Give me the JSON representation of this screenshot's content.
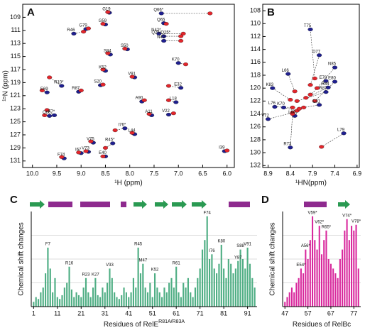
{
  "chart_data": [
    {
      "type": "scatter",
      "panel": "A",
      "xlabel": "¹H (ppm)",
      "ylabel": "¹⁵N (ppm)",
      "xlim": [
        10.2,
        5.85
      ],
      "ylim": [
        132,
        107
      ],
      "xticks": [
        {
          "value": 10.0,
          "label": "10.0"
        },
        9.5,
        {
          "value": 9.0,
          "label": "9.0"
        },
        8.5,
        {
          "value": 8.0,
          "label": "8.0"
        },
        7.5,
        {
          "value": 7.0,
          "label": "7.0"
        },
        6.5,
        {
          "value": 6.0,
          "label": "6.0"
        }
      ],
      "yticks": [
        109,
        111,
        113,
        115,
        117,
        119,
        121,
        123,
        125,
        127,
        129,
        131
      ],
      "labels": [
        "G19",
        "Q65",
        "G59",
        "R46",
        "G79",
        "S50",
        "S84",
        "K70",
        "K52",
        "V91",
        "R10*",
        "E32",
        "E69",
        "R87",
        "L18",
        "F7*",
        "Q66",
        "A11",
        "V22",
        "I76*",
        "L44",
        "R45*",
        "V75",
        "V73",
        "F74",
        "I39",
        "E40",
        "I67",
        "A90",
        "S20",
        "Q66*",
        "N42*",
        "Q25/Q25*",
        "N42"
      ],
      "series": [
        {
          "color": "#1f1f8f",
          "x": [
            8.42,
            7.3,
            8.5,
            9.15,
            8.9,
            8.05,
            8.4,
            7.0,
            8.5,
            7.9,
            9.4,
            6.95,
            9.7,
            9.05,
            7.05,
            9.55,
            9.65,
            7.55,
            7.2,
            8.1,
            7.9,
            8.35,
            8.75,
            8.85,
            9.35,
            6.05,
            8.5,
            9.0,
            7.75,
            8.6,
            7.35,
            7.4,
            7.3,
            7.3
          ],
          "y": [
            108.3,
            109.9,
            110.1,
            111.5,
            110.8,
            113.9,
            114.7,
            116.0,
            117.2,
            118.2,
            119.5,
            119.8,
            120.5,
            120.4,
            122.0,
            124.0,
            124.1,
            124.0,
            123.9,
            126.0,
            126.9,
            128.3,
            128.2,
            129.6,
            130.6,
            129.5,
            130.3,
            129.8,
            121.9,
            119.4,
            108.4,
            111.5,
            111.9,
            112.6
          ]
        },
        {
          "color": "#e3262c",
          "x": [
            8.45,
            7.25,
            8.55,
            8.95,
            8.85,
            8.1,
            8.45,
            6.85,
            8.55,
            7.95,
            9.65,
            7.2,
            9.8,
            9.0,
            7.2,
            9.7,
            9.75,
            7.6,
            7.1,
            8.3,
            7.95,
            8.5,
            8.8,
            8.9,
            9.4,
            6.0,
            8.55,
            9.05,
            7.7,
            8.55,
            6.35,
            6.9,
            6.95,
            6.95
          ],
          "y": [
            108.2,
            110.0,
            110.0,
            111.2,
            110.7,
            113.8,
            114.5,
            116.2,
            117.0,
            118.1,
            118.2,
            119.5,
            120.2,
            120.2,
            121.7,
            123.2,
            124.0,
            123.8,
            123.7,
            126.3,
            126.7,
            129.0,
            128.0,
            129.5,
            130.4,
            129.4,
            130.3,
            129.7,
            121.7,
            119.3,
            108.4,
            111.5,
            111.9,
            112.6
          ]
        }
      ]
    },
    {
      "type": "scatter",
      "panel": "B",
      "xlabel": "¹HN(ppm)",
      "xlim": [
        9.02,
        6.85
      ],
      "ylim": [
        132.3,
        107
      ],
      "xticks": [
        8.9,
        8.4,
        7.9,
        7.4,
        6.9
      ],
      "yticks": [
        108,
        110,
        112,
        114,
        116,
        118,
        120,
        122,
        124,
        126,
        128,
        130,
        132
      ],
      "labels": [
        "T75",
        "D77",
        "N85",
        "L66",
        "K83",
        "E78",
        "E80",
        "R84",
        "R87",
        "E81",
        "L76",
        "K70",
        "V72",
        "L60",
        "R73",
        "L79"
      ],
      "series": [
        {
          "color": "#1f1f8f",
          "x": [
            7.95,
            7.75,
            7.4,
            8.45,
            8.8,
            7.6,
            7.4,
            7.55,
            7.6,
            7.75,
            8.75,
            8.55,
            8.9,
            8.3,
            8.4,
            7.2
          ],
          "y": [
            110.9,
            114.9,
            116.8,
            117.8,
            120.0,
            118.9,
            119.0,
            119.9,
            120.6,
            122.6,
            122.9,
            123.0,
            124.8,
            124.3,
            129.2,
            127.0
          ]
        },
        {
          "color": "#e3262c",
          "x": [
            7.85,
            7.95,
            7.8,
            8.3,
            8.4,
            7.95,
            7.85,
            8.05,
            8.25,
            8.1,
            8.35,
            8.25,
            8.35,
            8.2,
            8.35,
            7.7
          ],
          "y": [
            118.5,
            119.5,
            120.0,
            120.5,
            121.8,
            121.0,
            122.0,
            121.5,
            122.0,
            123.0,
            123.0,
            123.5,
            123.8,
            123.2,
            124.0,
            129.1
          ]
        }
      ]
    },
    {
      "type": "bar",
      "panel": "C",
      "ylabel": "Chemical shift changes",
      "xlabel": "Residues of RelE",
      "xlabel_sup": "R81A/R83A",
      "color": "#4fae84",
      "xlim": [
        0,
        95
      ],
      "ylim": [
        0,
        1
      ],
      "gridlines": [
        0.25,
        0.5,
        0.75
      ],
      "xticks": [
        1,
        11,
        21,
        31,
        41,
        51,
        61,
        71,
        81,
        91
      ],
      "x": [
        1,
        2,
        3,
        4,
        5,
        6,
        7,
        8,
        9,
        10,
        11,
        12,
        13,
        14,
        15,
        16,
        17,
        18,
        19,
        20,
        21,
        22,
        23,
        24,
        25,
        26,
        27,
        28,
        29,
        30,
        31,
        32,
        33,
        34,
        35,
        36,
        37,
        38,
        39,
        40,
        41,
        42,
        43,
        44,
        45,
        46,
        47,
        48,
        49,
        50,
        51,
        52,
        53,
        54,
        55,
        56,
        57,
        58,
        59,
        60,
        61,
        62,
        63,
        64,
        65,
        66,
        67,
        68,
        69,
        70,
        71,
        72,
        73,
        74,
        75,
        76,
        77,
        78,
        79,
        80,
        81,
        82,
        83,
        84,
        85,
        86,
        87,
        88,
        89,
        90,
        91,
        92,
        93,
        94
      ],
      "values": [
        0.05,
        0.1,
        0.08,
        0.15,
        0.2,
        0.35,
        0.62,
        0.4,
        0.15,
        0.3,
        0.1,
        0.08,
        0.12,
        0.2,
        0.25,
        0.42,
        0.18,
        0.1,
        0.15,
        0.12,
        0.1,
        0.2,
        0.3,
        0.15,
        0.1,
        0.2,
        0.3,
        0.12,
        0.1,
        0.2,
        0.15,
        0.25,
        0.4,
        0.3,
        0.15,
        0.1,
        0.08,
        0.12,
        0.2,
        0.15,
        0.1,
        0.15,
        0.3,
        0.2,
        0.62,
        0.35,
        0.45,
        0.2,
        0.15,
        0.25,
        0.1,
        0.35,
        0.2,
        0.15,
        0.1,
        0.2,
        0.15,
        0.25,
        0.3,
        0.2,
        0.42,
        0.15,
        0.1,
        0.25,
        0.2,
        0.3,
        0.15,
        0.1,
        0.2,
        0.3,
        0.4,
        0.6,
        0.7,
        0.95,
        0.5,
        0.55,
        0.4,
        0.35,
        0.45,
        0.65,
        0.4,
        0.3,
        0.5,
        0.45,
        0.35,
        0.4,
        0.48,
        0.6,
        0.5,
        0.4,
        0.62,
        0.45,
        0.3,
        0.2
      ],
      "annotations": [
        {
          "text": "F7",
          "x": 7
        },
        {
          "text": "R16",
          "x": 16
        },
        {
          "text": "R23",
          "x": 23
        },
        {
          "text": "K27",
          "x": 27
        },
        {
          "text": "V33",
          "x": 33
        },
        {
          "text": "R45",
          "x": 45
        },
        {
          "text": "M47",
          "x": 47
        },
        {
          "text": "K52",
          "x": 52
        },
        {
          "text": "R61",
          "x": 61
        },
        {
          "text": "F74",
          "x": 74
        },
        {
          "text": "I76",
          "x": 76
        },
        {
          "text": "K80",
          "x": 80
        },
        {
          "text": "Y87",
          "x": 87
        },
        {
          "text": "S88",
          "x": 88
        },
        {
          "text": "V91",
          "x": 91
        }
      ]
    },
    {
      "type": "bar",
      "panel": "D",
      "ylabel": "Chemical shift changes",
      "xlabel": "Residues of RelBc",
      "color": "#d8279c",
      "xlim": [
        46,
        80
      ],
      "ylim": [
        0,
        1
      ],
      "gridlines": [
        0.25,
        0.5,
        0.75
      ],
      "xticks": [
        47,
        57,
        67,
        77
      ],
      "x": [
        47,
        48,
        49,
        50,
        51,
        52,
        53,
        54,
        55,
        56,
        57,
        58,
        59,
        60,
        61,
        62,
        63,
        64,
        65,
        66,
        67,
        68,
        69,
        70,
        71,
        72,
        73,
        74,
        75,
        76,
        77,
        78,
        79
      ],
      "values": [
        0.05,
        0.1,
        0.15,
        0.2,
        0.15,
        0.25,
        0.3,
        0.4,
        0.35,
        0.6,
        0.5,
        0.7,
        0.95,
        0.7,
        0.6,
        0.85,
        0.55,
        0.7,
        0.8,
        0.5,
        0.45,
        0.4,
        0.35,
        0.3,
        0.5,
        0.6,
        0.8,
        0.92,
        0.7,
        0.85,
        0.8,
        0.86,
        0.4
      ],
      "annotations": [
        {
          "text": "E54*",
          "x": 54
        },
        {
          "text": "A56*",
          "x": 56
        },
        {
          "text": "V59*",
          "x": 59
        },
        {
          "text": "V62*",
          "x": 62
        },
        {
          "text": "R65*",
          "x": 65
        },
        {
          "text": "V74*",
          "x": 74
        },
        {
          "text": "V78*",
          "x": 78
        }
      ]
    }
  ]
}
